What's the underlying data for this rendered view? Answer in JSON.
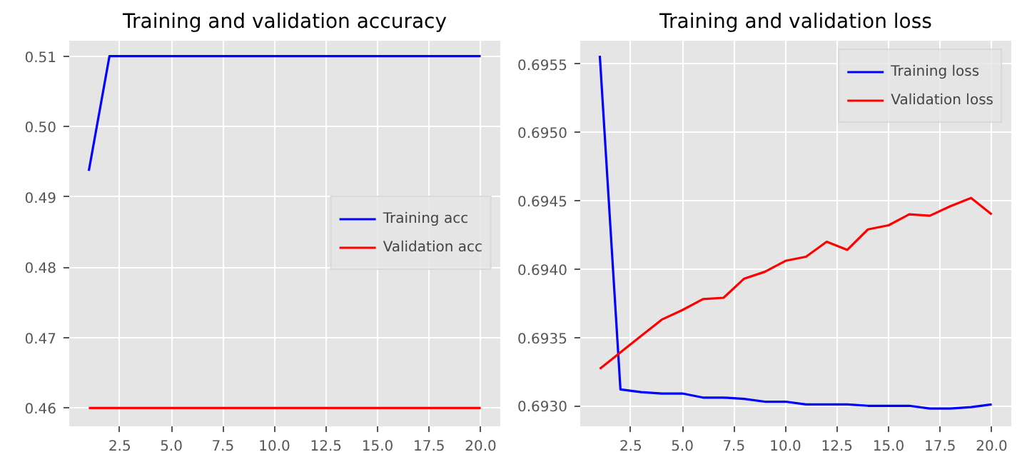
{
  "chart_data": [
    {
      "type": "line",
      "title": "Training and validation accuracy",
      "x": [
        1,
        2,
        3,
        4,
        5,
        6,
        7,
        8,
        9,
        10,
        11,
        12,
        13,
        14,
        15,
        16,
        17,
        18,
        19,
        20
      ],
      "series": [
        {
          "name": "Training acc",
          "color": "#0000ff",
          "values": [
            0.4937,
            0.51,
            0.51,
            0.51,
            0.51,
            0.51,
            0.51,
            0.51,
            0.51,
            0.51,
            0.51,
            0.51,
            0.51,
            0.51,
            0.51,
            0.51,
            0.51,
            0.51,
            0.51,
            0.51
          ]
        },
        {
          "name": "Validation acc",
          "color": "#ff0000",
          "values": [
            0.46,
            0.46,
            0.46,
            0.46,
            0.46,
            0.46,
            0.46,
            0.46,
            0.46,
            0.46,
            0.46,
            0.46,
            0.46,
            0.46,
            0.46,
            0.46,
            0.46,
            0.46,
            0.46,
            0.46
          ]
        }
      ],
      "xlim": [
        0.05,
        20.95
      ],
      "ylim": [
        0.4574,
        0.5122
      ],
      "xticks": [
        2.5,
        {
          "value": 5,
          "label": "5.0"
        },
        7.5,
        {
          "value": 10,
          "label": "10.0"
        },
        12.5,
        {
          "value": 15,
          "label": "15.0"
        },
        17.5,
        {
          "value": 20,
          "label": "20.0"
        }
      ],
      "yticks": [
        0.46,
        0.47,
        0.48,
        0.49,
        {
          "value": 0.5,
          "label": "0.50"
        },
        0.51
      ],
      "grid": true,
      "legend": "center right"
    },
    {
      "type": "line",
      "title": "Training and validation loss",
      "x": [
        1,
        2,
        3,
        4,
        5,
        6,
        7,
        8,
        9,
        10,
        11,
        12,
        13,
        14,
        15,
        16,
        17,
        18,
        19,
        20
      ],
      "series": [
        {
          "name": "Training loss",
          "color": "#0000ff",
          "values": [
            0.69556,
            0.69312,
            0.6931,
            0.69309,
            0.69309,
            0.69306,
            0.69306,
            0.69305,
            0.69303,
            0.69303,
            0.69301,
            0.69301,
            0.69301,
            0.693,
            0.693,
            0.693,
            0.69298,
            0.69298,
            0.69299,
            0.69301
          ]
        },
        {
          "name": "Validation loss",
          "color": "#ff0000",
          "values": [
            0.69327,
            0.69339,
            0.69351,
            0.69363,
            0.6937,
            0.69378,
            0.69379,
            0.69393,
            0.69398,
            0.69406,
            0.69409,
            0.6942,
            0.69414,
            0.69429,
            0.69432,
            0.6944,
            0.69439,
            0.69446,
            0.69452,
            0.6944
          ]
        }
      ],
      "xlim": [
        0.05,
        20.95
      ],
      "ylim": [
        0.69285,
        0.69567
      ],
      "xticks": [
        2.5,
        {
          "value": 5,
          "label": "5.0"
        },
        7.5,
        {
          "value": 10,
          "label": "10.0"
        },
        12.5,
        {
          "value": 15,
          "label": "15.0"
        },
        17.5,
        {
          "value": 20,
          "label": "20.0"
        }
      ],
      "yticks": [
        {
          "value": 0.693,
          "label": "0.6930"
        },
        0.6935,
        {
          "value": 0.694,
          "label": "0.6940"
        },
        0.6945,
        {
          "value": 0.695,
          "label": "0.6950"
        },
        0.6955
      ],
      "grid": true,
      "legend": "top right"
    }
  ]
}
